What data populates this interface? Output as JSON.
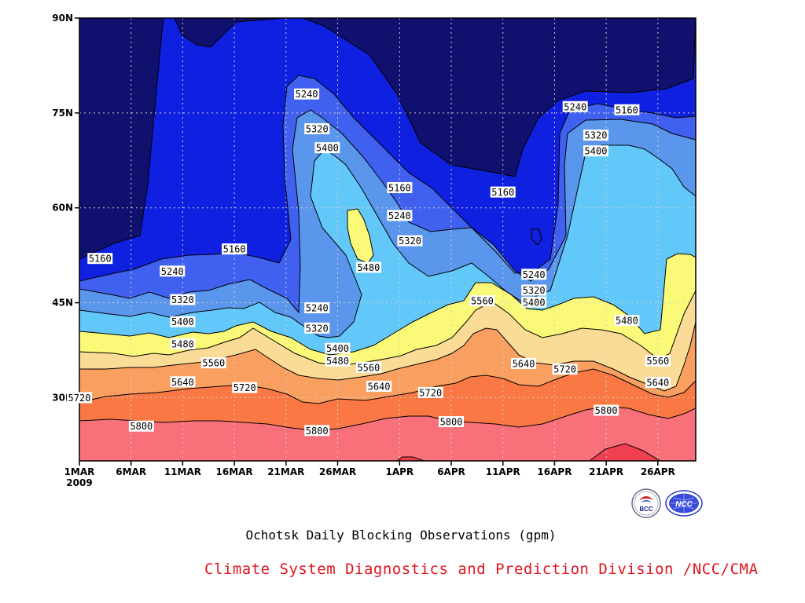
{
  "chart_data": {
    "type": "contour",
    "title": "Ochotsk Daily Blocking Observations (gpm)",
    "x_ticks": [
      "1MAR",
      "6MAR",
      "11MAR",
      "16MAR",
      "21MAR",
      "26MAR",
      "1APR",
      "6APR",
      "11APR",
      "16APR",
      "21APR",
      "26APR"
    ],
    "x_year": "2009",
    "x_range": [
      "2009-03-01",
      "2009-04-30"
    ],
    "y_ticks": [
      "30N",
      "45N",
      "60N",
      "75N",
      "90N"
    ],
    "y_range": [
      20,
      90
    ],
    "grid": true,
    "levels": [
      5160,
      5240,
      5320,
      5400,
      5480,
      5560,
      5640,
      5720,
      5800
    ],
    "fill_colors": [
      "#10106e",
      "#1020e0",
      "#4060f0",
      "#5a96ec",
      "#62c8fa",
      "#fafa78",
      "#fadc96",
      "#f9a060",
      "#fa7844",
      "#f8707a",
      "#f04050"
    ],
    "contour_labels": [
      {
        "text": "5160",
        "date": "2009-03-03",
        "lat": 52
      },
      {
        "text": "5160",
        "date": "2009-03-16",
        "lat": 53.5
      },
      {
        "text": "5240",
        "date": "2009-03-10",
        "lat": 50
      },
      {
        "text": "5320",
        "date": "2009-03-11",
        "lat": 45.5
      },
      {
        "text": "5400",
        "date": "2009-03-11",
        "lat": 42
      },
      {
        "text": "5480",
        "date": "2009-03-11",
        "lat": 38.5
      },
      {
        "text": "5560",
        "date": "2009-03-14",
        "lat": 35.5
      },
      {
        "text": "5640",
        "date": "2009-03-11",
        "lat": 32.5
      },
      {
        "text": "5720",
        "date": "2009-03-17",
        "lat": 31.6
      },
      {
        "text": "5720",
        "date": "2009-03-01",
        "lat": 30
      },
      {
        "text": "5800",
        "date": "2009-03-07",
        "lat": 25.5
      },
      {
        "text": "5240",
        "date": "2009-03-23",
        "lat": 78
      },
      {
        "text": "5320",
        "date": "2009-03-24",
        "lat": 72.5
      },
      {
        "text": "5400",
        "date": "2009-03-25",
        "lat": 69.5
      },
      {
        "text": "5480",
        "date": "2009-03-29",
        "lat": 50.6
      },
      {
        "text": "5240",
        "date": "2009-03-24",
        "lat": 44.2
      },
      {
        "text": "5320",
        "date": "2009-03-24",
        "lat": 41
      },
      {
        "text": "5400",
        "date": "2009-03-26",
        "lat": 37.8
      },
      {
        "text": "5480",
        "date": "2009-03-26",
        "lat": 35.8
      },
      {
        "text": "5560",
        "date": "2009-03-29",
        "lat": 34.8
      },
      {
        "text": "5640",
        "date": "2009-03-30",
        "lat": 31.8
      },
      {
        "text": "5800",
        "date": "2009-03-24",
        "lat": 24.8
      },
      {
        "text": "5160",
        "date": "2009-04-01",
        "lat": 63.2
      },
      {
        "text": "5240",
        "date": "2009-04-01",
        "lat": 58.8
      },
      {
        "text": "5320",
        "date": "2009-04-02",
        "lat": 54.8
      },
      {
        "text": "5720",
        "date": "2009-04-04",
        "lat": 30.8
      },
      {
        "text": "5800",
        "date": "2009-04-06",
        "lat": 26.2
      },
      {
        "text": "5560",
        "date": "2009-04-09",
        "lat": 45.3
      },
      {
        "text": "5160",
        "date": "2009-04-11",
        "lat": 62.5
      },
      {
        "text": "5240",
        "date": "2009-04-14",
        "lat": 49.5
      },
      {
        "text": "5320",
        "date": "2009-04-14",
        "lat": 47
      },
      {
        "text": "5400",
        "date": "2009-04-14",
        "lat": 45.1
      },
      {
        "text": "5640",
        "date": "2009-04-13",
        "lat": 35.4
      },
      {
        "text": "5720",
        "date": "2009-04-17",
        "lat": 34.5
      },
      {
        "text": "5240",
        "date": "2009-04-18",
        "lat": 76
      },
      {
        "text": "5160",
        "date": "2009-04-23",
        "lat": 75.5
      },
      {
        "text": "5320",
        "date": "2009-04-20",
        "lat": 71.5
      },
      {
        "text": "5400",
        "date": "2009-04-20",
        "lat": 69
      },
      {
        "text": "5480",
        "date": "2009-04-23",
        "lat": 42.2
      },
      {
        "text": "5560",
        "date": "2009-04-26",
        "lat": 35.8
      },
      {
        "text": "5640",
        "date": "2009-04-26",
        "lat": 32.4
      },
      {
        "text": "5800",
        "date": "2009-04-21",
        "lat": 28
      }
    ]
  },
  "credit": {
    "text": "Climate System Diagnostics and Prediction Division /NCC/CMA",
    "color": "#e0141e"
  },
  "logos": [
    {
      "icon": "bcc-logo",
      "text": "BCC"
    },
    {
      "icon": "ncc-logo",
      "text": "NCC"
    }
  ]
}
